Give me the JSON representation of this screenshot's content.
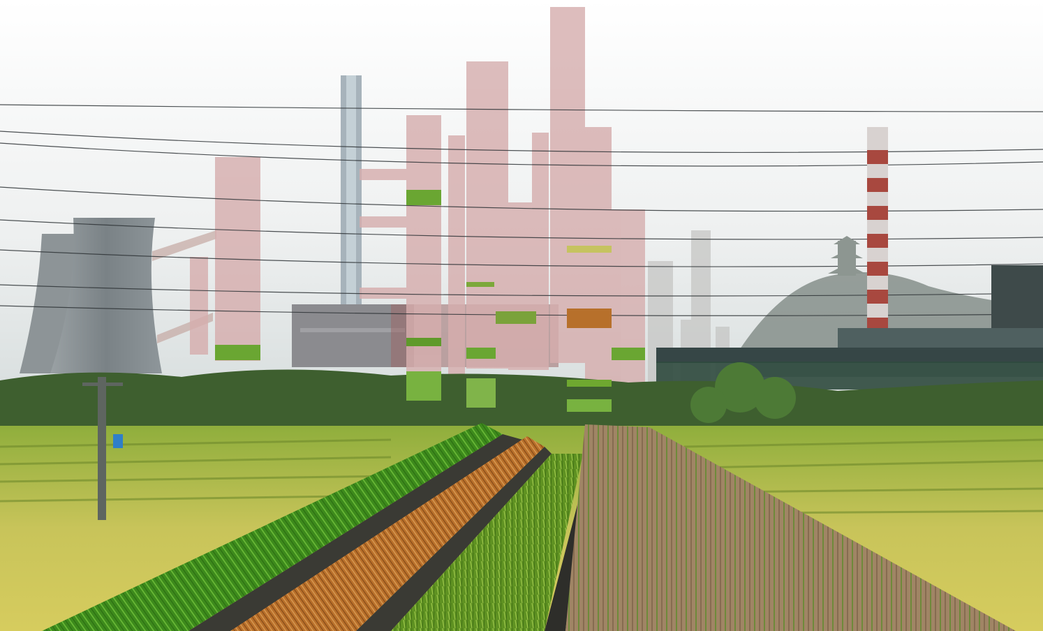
{
  "image": {
    "kind": "photo-collage",
    "palette": {
      "sky": "#f2f3f3",
      "haze": "#dfe4e4",
      "tower": "#7c8387",
      "bar_pink": "#d9b3b3",
      "field_yellow": "#c9c45a",
      "field_green": "#7aa23a",
      "forest": "#3e5f2f",
      "grass_strip": "#3f8f1e",
      "wood_strip": "#b7702b",
      "rice_strip": "#6f9f28",
      "soil_strip": "#9b7f5e",
      "chimney_red": "#a8483f"
    },
    "icons": [
      "cooling-tower-icon",
      "chimney-icon",
      "pagoda-icon",
      "power-pole-icon"
    ]
  }
}
